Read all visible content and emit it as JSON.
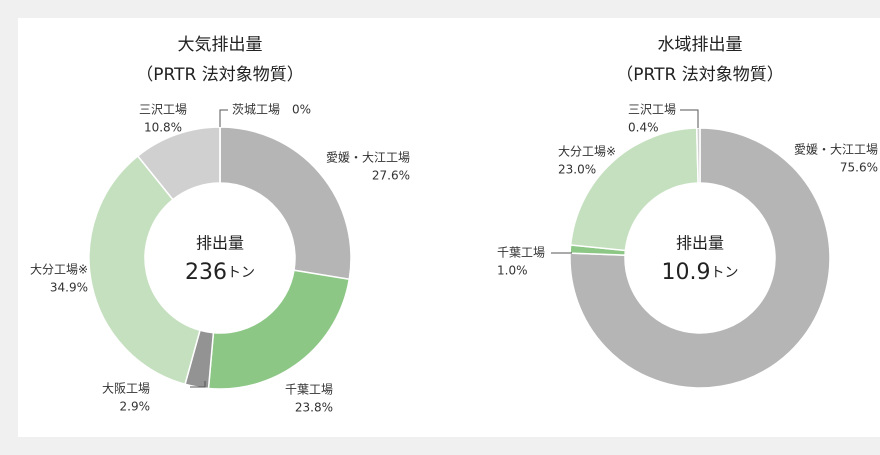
{
  "chart_data": [
    {
      "type": "donut",
      "title": "大気排出量",
      "subtitle": "（PRTR 法対象物質）",
      "center_label": "排出量",
      "total": 236,
      "unit": "トン",
      "categories": [
        "愛媛・大江工場",
        "千葉工場",
        "大阪工場",
        "大分工場※",
        "三沢工場",
        "茨城工場"
      ],
      "values": [
        27.6,
        23.8,
        2.9,
        34.9,
        10.8,
        0
      ],
      "value_labels": [
        "27.6%",
        "23.8%",
        "2.9%",
        "34.9%",
        "10.8%",
        "0%"
      ],
      "colors": [
        "#b5b5b5",
        "#8cc785",
        "#939393",
        "#c5e0bf",
        "#d0d0d0",
        "#e0e0e0"
      ]
    },
    {
      "type": "donut",
      "title": "水域排出量",
      "subtitle": "（PRTR 法対象物質）",
      "center_label": "排出量",
      "total": 10.9,
      "unit": "トン",
      "categories": [
        "愛媛・大江工場",
        "千葉工場",
        "大分工場※",
        "三沢工場"
      ],
      "values": [
        75.6,
        1.0,
        23.0,
        0.4
      ],
      "value_labels": [
        "75.6%",
        "1.0%",
        "23.0%",
        "0.4%"
      ],
      "colors": [
        "#b5b5b5",
        "#8cc785",
        "#c5e0bf",
        "#d0d0d0"
      ]
    }
  ]
}
